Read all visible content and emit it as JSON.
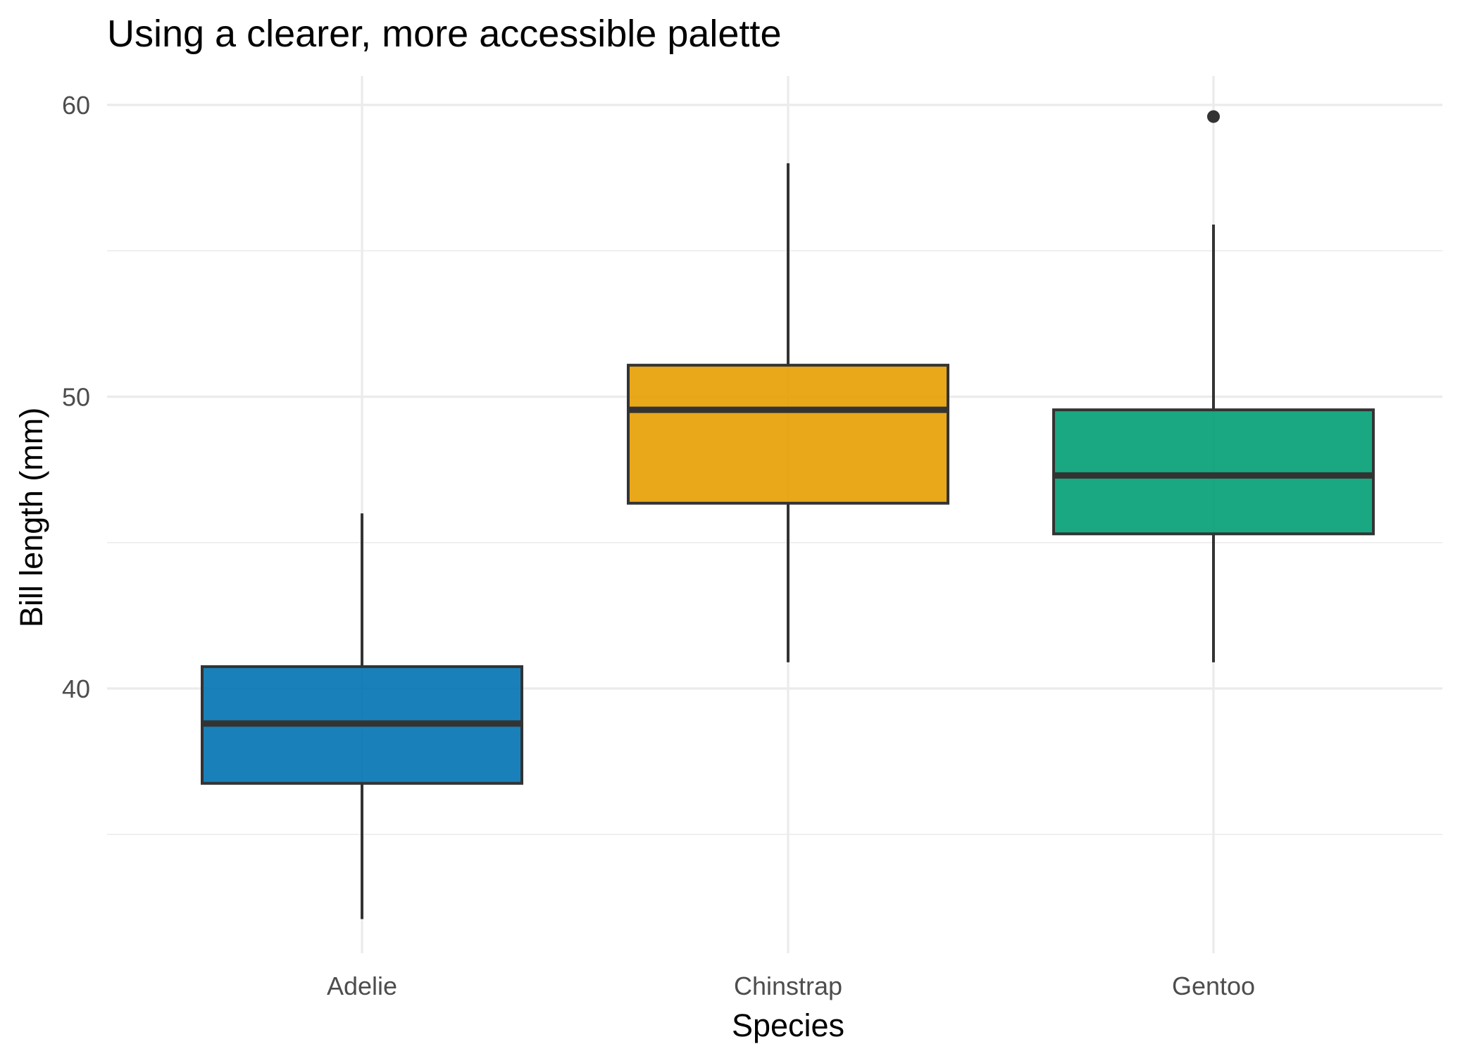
{
  "chart_data": {
    "type": "box",
    "title": "Using a clearer, more accessible palette",
    "xlabel": "Species",
    "ylabel": "Bill length (mm)",
    "categories": [
      "Adelie",
      "Chinstrap",
      "Gentoo"
    ],
    "ylim": [
      31.5,
      61.0
    ],
    "yticks": [
      40,
      50,
      60
    ],
    "y_minor_ticks": [
      35,
      45,
      55
    ],
    "grid": true,
    "legend": "none",
    "boxes": [
      {
        "category": "Adelie",
        "color": "#0072B2",
        "whisker_low": 32.1,
        "q1": 36.75,
        "median": 38.8,
        "q3": 40.75,
        "whisker_high": 46.0,
        "outliers": []
      },
      {
        "category": "Chinstrap",
        "color": "#E69F00",
        "whisker_low": 40.9,
        "q1": 46.35,
        "median": 49.55,
        "q3": 51.08,
        "whisker_high": 58.0,
        "outliers": []
      },
      {
        "category": "Gentoo",
        "color": "#009E73",
        "whisker_low": 40.9,
        "q1": 45.3,
        "median": 47.3,
        "q3": 49.55,
        "whisker_high": 55.9,
        "outliers": [
          59.6
        ]
      }
    ]
  }
}
